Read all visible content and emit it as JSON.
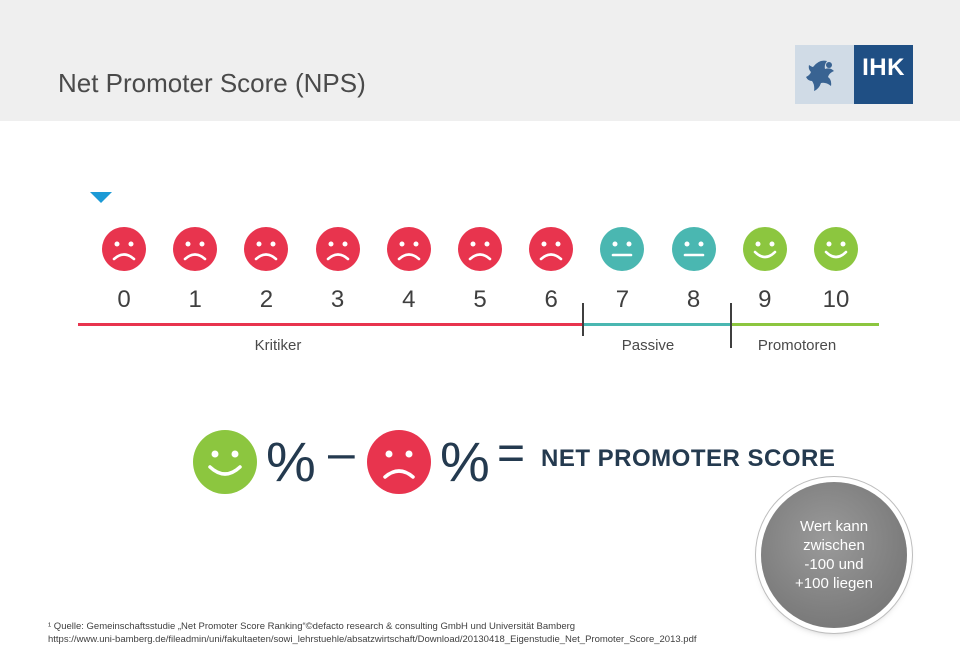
{
  "header": {
    "title": "Net Promoter Score (NPS)",
    "logo_text": "IHK"
  },
  "scale": {
    "numbers": [
      "0",
      "1",
      "2",
      "3",
      "4",
      "5",
      "6",
      "7",
      "8",
      "9",
      "10"
    ],
    "groups": [
      {
        "label": "Kritiker",
        "color": "#e8344e"
      },
      {
        "label": "Passive",
        "color": "#4ab7b1"
      },
      {
        "label": "Promotoren",
        "color": "#8cc63f"
      }
    ],
    "face_types": [
      "sad",
      "sad",
      "sad",
      "sad",
      "sad",
      "sad",
      "sad",
      "neutral",
      "neutral",
      "happy",
      "happy"
    ]
  },
  "formula": {
    "percent1": "%",
    "minus": "–",
    "percent2": "%",
    "equals": "=",
    "label": "NET PROMOTER SCORE"
  },
  "bubble": {
    "lines": [
      "Wert kann",
      "zwischen",
      "-100 und",
      "+100 liegen"
    ]
  },
  "footnote": {
    "line1": "¹ Quelle: Gemeinschaftsstudie „Net Promoter Score Ranking“©defacto research & consulting GmbH und Universität Bamberg",
    "line2": "https://www.uni-bamberg.de/fileadmin/uni/fakultaeten/sowi_lehrstuehle/absatzwirtschaft/Download/20130418_Eigenstudie_Net_Promoter_Score_2013.pdf"
  }
}
